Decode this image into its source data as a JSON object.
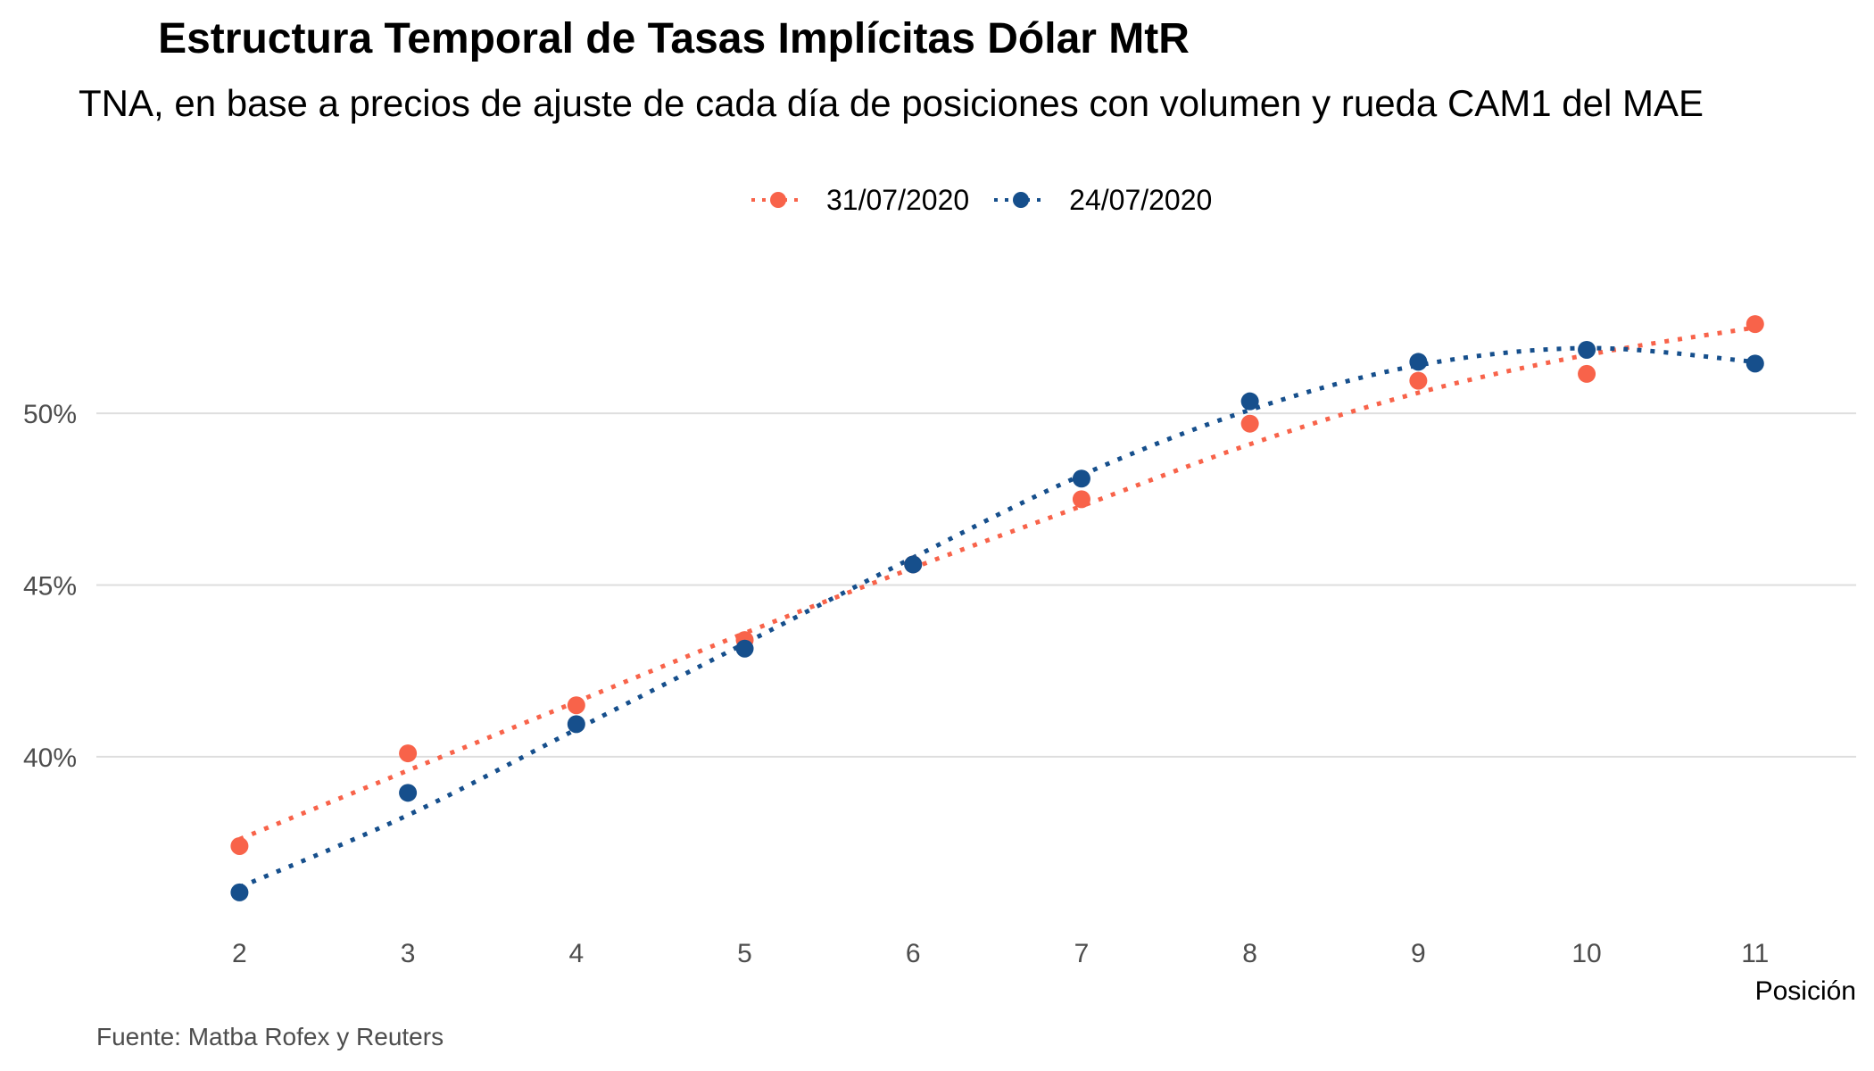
{
  "chart_data": {
    "type": "scatter",
    "title": "Estructura Temporal de Tasas Implícitas Dólar MtR",
    "subtitle": "TNA, en base a precios de ajuste de cada día de posiciones con volumen y rueda CAM1 del MAE",
    "xlabel": "Posición",
    "ylabel": "",
    "x": [
      2,
      3,
      4,
      5,
      6,
      7,
      8,
      9,
      10,
      11
    ],
    "x_tick_labels": [
      "2",
      "3",
      "4",
      "5",
      "6",
      "7",
      "8",
      "9",
      "10",
      "11"
    ],
    "xlim": [
      1.15,
      11.6
    ],
    "ylim": [
      34.8,
      54.5
    ],
    "y_ticks": [
      40,
      45,
      50
    ],
    "y_tick_labels": [
      "40%",
      "45%",
      "50%"
    ],
    "grid": true,
    "legend_position": "top",
    "series": [
      {
        "name": "31/07/2020",
        "color": "#F8634A",
        "values": [
          37.4,
          40.1,
          41.5,
          43.4,
          45.6,
          47.5,
          49.7,
          50.95,
          51.15,
          52.6
        ],
        "trend": [
          37.6,
          39.6,
          41.6,
          43.6,
          45.5,
          47.3,
          49.1,
          50.6,
          51.7,
          52.5
        ]
      },
      {
        "name": "24/07/2020",
        "color": "#164F8C",
        "values": [
          36.05,
          38.95,
          40.95,
          43.15,
          45.6,
          48.1,
          50.35,
          51.5,
          51.85,
          51.45
        ],
        "trend": [
          36.2,
          38.3,
          40.8,
          43.3,
          45.8,
          48.2,
          50.1,
          51.4,
          51.9,
          51.5
        ]
      }
    ],
    "source": "Fuente: Matba Rofex y Reuters"
  }
}
